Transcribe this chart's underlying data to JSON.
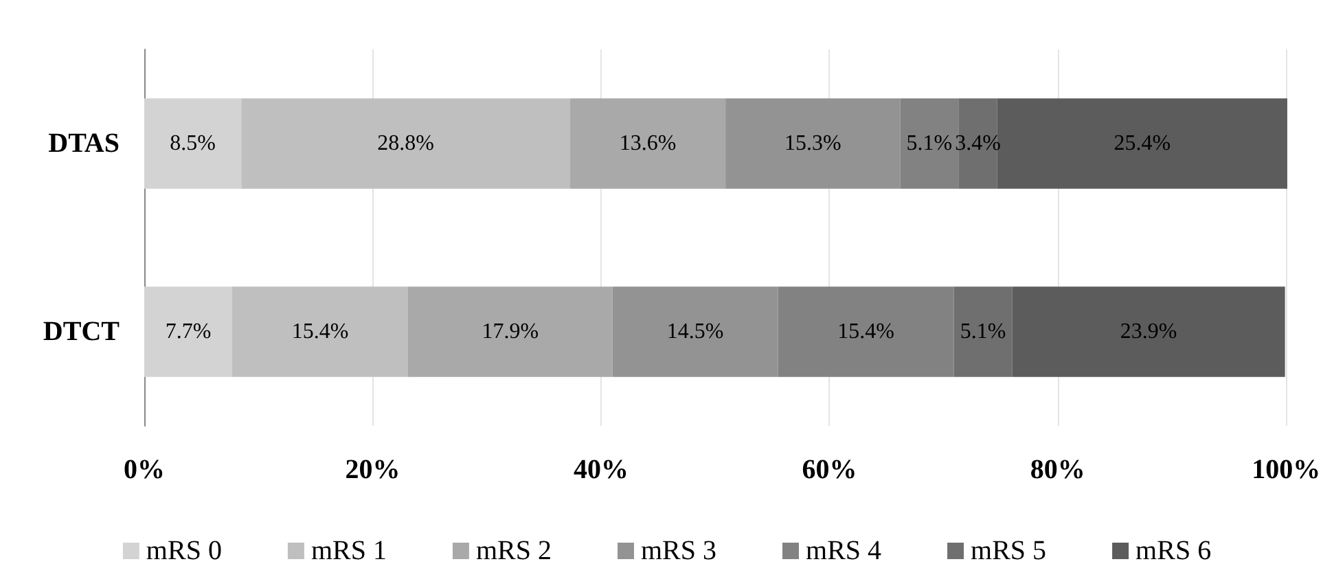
{
  "chart_data": {
    "type": "bar",
    "orientation": "horizontal",
    "stacked": true,
    "categories": [
      "DTAS",
      "DTCT"
    ],
    "series": [
      {
        "name": "mRS 0",
        "color": "#d3d3d3",
        "values": [
          8.5,
          7.7
        ],
        "value_labels": [
          "8.5%",
          "7.7%"
        ]
      },
      {
        "name": "mRS 1",
        "color": "#bfbfbf",
        "values": [
          28.8,
          15.4
        ],
        "value_labels": [
          "28.8%",
          "15.4%"
        ]
      },
      {
        "name": "mRS 2",
        "color": "#a9a9a9",
        "values": [
          13.6,
          17.9
        ],
        "value_labels": [
          "13.6%",
          "17.9%"
        ]
      },
      {
        "name": "mRS 3",
        "color": "#939393",
        "values": [
          15.3,
          14.5
        ],
        "value_labels": [
          "15.3%",
          "14.5%"
        ]
      },
      {
        "name": "mRS 4",
        "color": "#828282",
        "values": [
          5.1,
          15.4
        ],
        "value_labels": [
          "5.1%",
          "15.4%"
        ]
      },
      {
        "name": "mRS 5",
        "color": "#6f6f6f",
        "values": [
          3.4,
          5.1
        ],
        "value_labels": [
          "3.4%",
          "5.1%"
        ]
      },
      {
        "name": "mRS 6",
        "color": "#5c5c5c",
        "values": [
          25.4,
          23.9
        ],
        "value_labels": [
          "25.4%",
          "23.9%"
        ]
      }
    ],
    "xlim": [
      0,
      100.1
    ],
    "xticks": [
      {
        "value": 0,
        "label": "0%"
      },
      {
        "value": 20,
        "label": "20%"
      },
      {
        "value": 40,
        "label": "40%"
      },
      {
        "value": 60,
        "label": "60%"
      },
      {
        "value": 80,
        "label": "80%"
      },
      {
        "value": 100,
        "label": "100%"
      }
    ],
    "grid": "x",
    "legend": "bottom"
  }
}
